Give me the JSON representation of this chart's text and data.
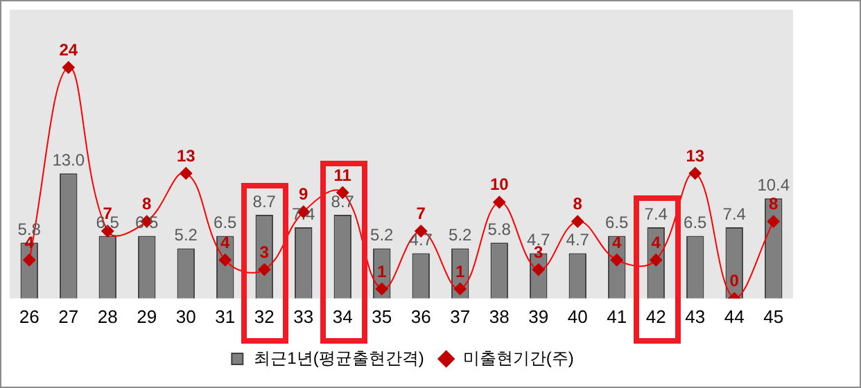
{
  "chart_data": {
    "type": "bar",
    "categories": [
      "26",
      "27",
      "28",
      "29",
      "30",
      "31",
      "32",
      "33",
      "34",
      "35",
      "36",
      "37",
      "38",
      "39",
      "40",
      "41",
      "42",
      "43",
      "44",
      "45"
    ],
    "series": [
      {
        "name": "최근1년(평균출현간격)",
        "color": "#808080",
        "values": [
          5.8,
          13.0,
          6.5,
          6.5,
          5.2,
          6.5,
          8.7,
          7.4,
          8.7,
          5.2,
          4.7,
          5.2,
          5.8,
          4.7,
          4.7,
          6.5,
          7.4,
          6.5,
          7.4,
          10.4
        ],
        "value_labels": [
          "5.8",
          "13.0",
          "6.5",
          "6.5",
          "5.2",
          "6.5",
          "8.7",
          "7.4",
          "8.7",
          "5.2",
          "4.7",
          "5.2",
          "5.8",
          "4.7",
          "4.7",
          "6.5",
          "7.4",
          "6.5",
          "7.4",
          "10.4"
        ]
      },
      {
        "name": "미출현기간(주)",
        "type": "line",
        "color": "#c00000",
        "values": [
          4,
          24,
          7,
          8,
          13,
          4,
          3,
          9,
          11,
          1,
          7,
          1,
          10,
          3,
          8,
          4,
          4,
          13,
          0,
          8
        ]
      }
    ],
    "ylim": [
      0,
      30
    ],
    "tick_labels": "x",
    "data_labels": true,
    "grid": false,
    "legend": "bottom",
    "marker": "diamond"
  }
}
